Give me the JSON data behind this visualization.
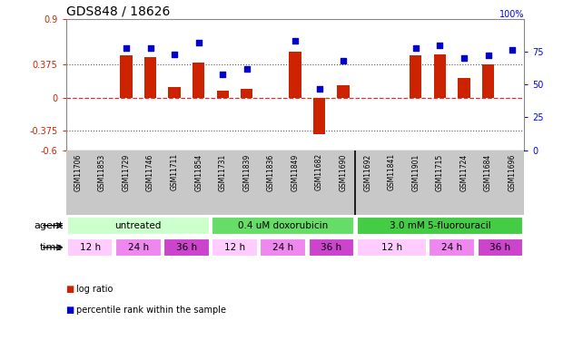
{
  "title": "GDS848 / 18626",
  "samples": [
    "GSM11706",
    "GSM11853",
    "GSM11729",
    "GSM11746",
    "GSM11711",
    "GSM11854",
    "GSM11731",
    "GSM11839",
    "GSM11836",
    "GSM11849",
    "GSM11682",
    "GSM11690",
    "GSM11692",
    "GSM11841",
    "GSM11901",
    "GSM11715",
    "GSM11724",
    "GSM11684",
    "GSM11696"
  ],
  "log_ratio": [
    0.0,
    0.0,
    0.48,
    0.465,
    0.12,
    0.4,
    0.08,
    0.1,
    0.0,
    0.52,
    -0.42,
    0.14,
    0.0,
    0.0,
    0.48,
    0.49,
    0.22,
    0.38,
    0.0
  ],
  "percentile_rank": [
    null,
    null,
    78,
    78,
    73,
    82,
    58,
    62,
    null,
    83,
    47,
    68,
    null,
    null,
    78,
    80,
    70,
    72,
    76
  ],
  "ylim_left": [
    -0.6,
    0.9
  ],
  "ylim_right": [
    0,
    100
  ],
  "agent_groups": [
    {
      "label": "untreated",
      "start": 0,
      "end": 6,
      "color": "#ccffcc"
    },
    {
      "label": "0.4 uM doxorubicin",
      "start": 6,
      "end": 12,
      "color": "#66dd66"
    },
    {
      "label": "3.0 mM 5-fluorouracil",
      "start": 12,
      "end": 19,
      "color": "#44cc44"
    }
  ],
  "time_groups": [
    {
      "label": "12 h",
      "start": 0,
      "end": 2,
      "color": "#ffccff"
    },
    {
      "label": "24 h",
      "start": 2,
      "end": 4,
      "color": "#ee88ee"
    },
    {
      "label": "36 h",
      "start": 4,
      "end": 6,
      "color": "#cc44cc"
    },
    {
      "label": "12 h",
      "start": 6,
      "end": 8,
      "color": "#ffccff"
    },
    {
      "label": "24 h",
      "start": 8,
      "end": 10,
      "color": "#ee88ee"
    },
    {
      "label": "36 h",
      "start": 10,
      "end": 12,
      "color": "#cc44cc"
    },
    {
      "label": "12 h",
      "start": 12,
      "end": 15,
      "color": "#ffccff"
    },
    {
      "label": "24 h",
      "start": 15,
      "end": 17,
      "color": "#ee88ee"
    },
    {
      "label": "36 h",
      "start": 17,
      "end": 19,
      "color": "#cc44cc"
    }
  ],
  "bar_color": "#cc2200",
  "dot_color": "#0000cc",
  "zero_line_color": "#cc0000",
  "dotted_line_color": "#555555",
  "bg_labels": "#c8c8c8",
  "title_fontsize": 10,
  "tick_fontsize": 7,
  "label_fontsize": 8,
  "sample_fontsize": 5.5
}
